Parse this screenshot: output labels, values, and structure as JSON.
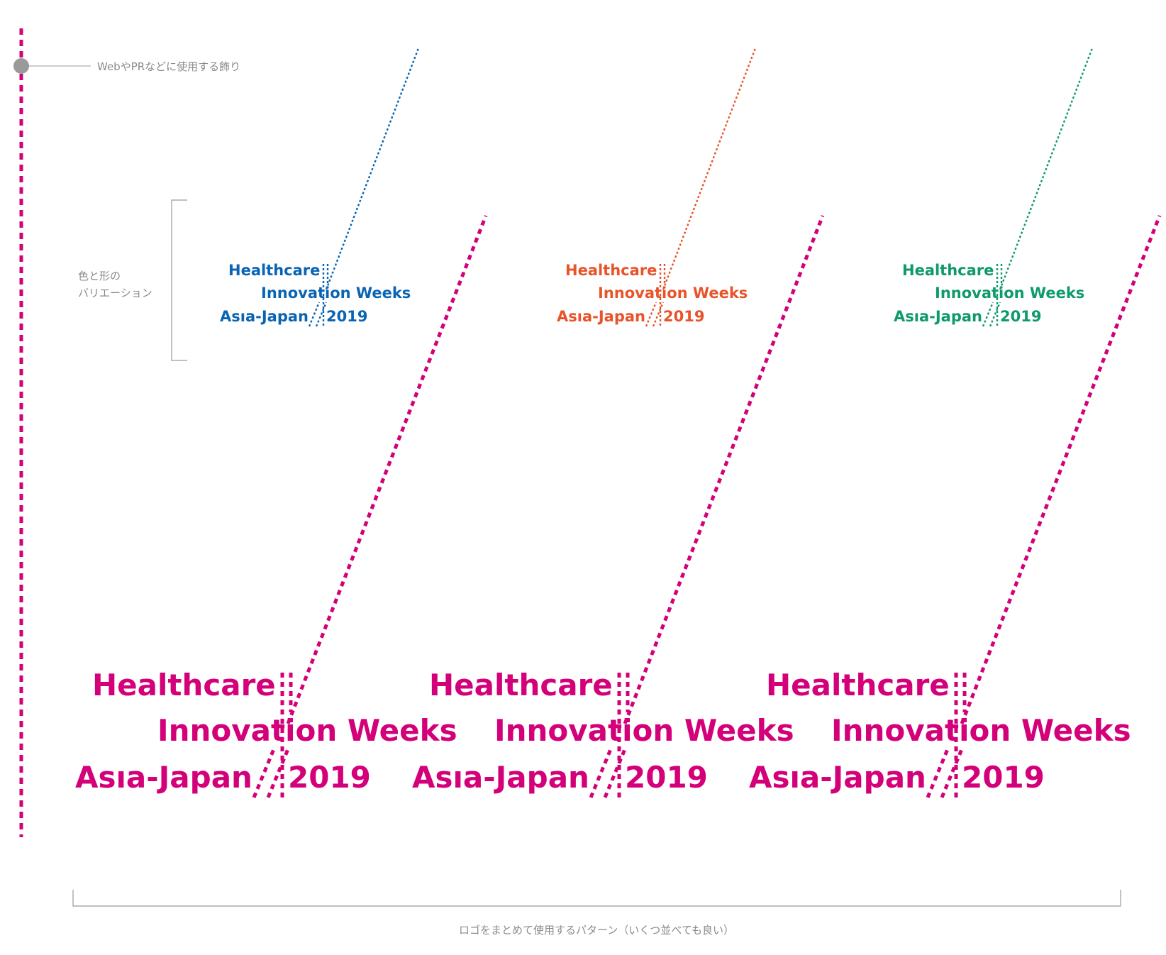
{
  "annotations": {
    "web_pr_note": "WebやPRなどに使用する飾り",
    "variation_note_line1": "色と形の",
    "variation_note_line2": "バリエーション",
    "bottom_note": "ロゴをまとめて使用するパターン（いくつ並べても良い）"
  },
  "logo": {
    "line1": "Healthcare",
    "line2": "Innovation Weeks",
    "line3a": "Asıa-Japan",
    "line3b": "2019"
  },
  "colors": {
    "magenta": "#d4007a",
    "blue": "#0a64b4",
    "orange": "#e8542a",
    "green": "#0e9a6a",
    "gray": "#9a9a9a",
    "bracket": "#999999"
  },
  "small_logos": [
    {
      "name": "blue",
      "color": "#0a64b4"
    },
    {
      "name": "orange",
      "color": "#e8542a"
    },
    {
      "name": "green",
      "color": "#0e9a6a"
    }
  ],
  "large_logos_count": 3
}
